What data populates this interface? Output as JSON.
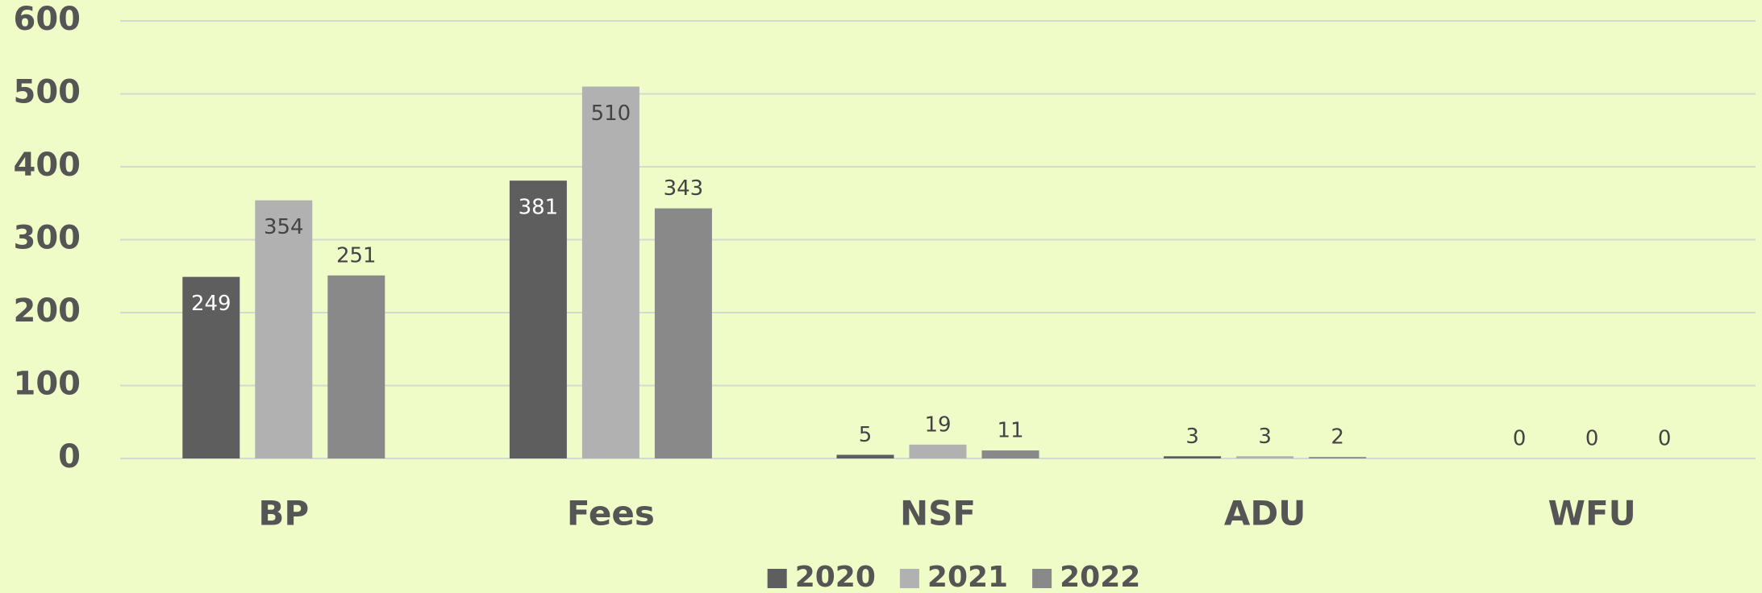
{
  "chart_data": {
    "type": "bar",
    "categories": [
      "BP",
      "Fees",
      "NSF",
      "ADU",
      "WFU"
    ],
    "series": [
      {
        "name": "2020",
        "color": "#5e5e5e",
        "values": [
          249,
          381,
          5,
          3,
          0
        ]
      },
      {
        "name": "2021",
        "color": "#b1b1b1",
        "values": [
          354,
          510,
          19,
          3,
          0
        ]
      },
      {
        "name": "2022",
        "color": "#898989",
        "values": [
          251,
          343,
          11,
          2,
          0
        ]
      }
    ],
    "ylim": [
      0,
      600
    ],
    "yticks": [
      0,
      100,
      200,
      300,
      400,
      500,
      600
    ],
    "grid": true,
    "legend": "bottom"
  }
}
